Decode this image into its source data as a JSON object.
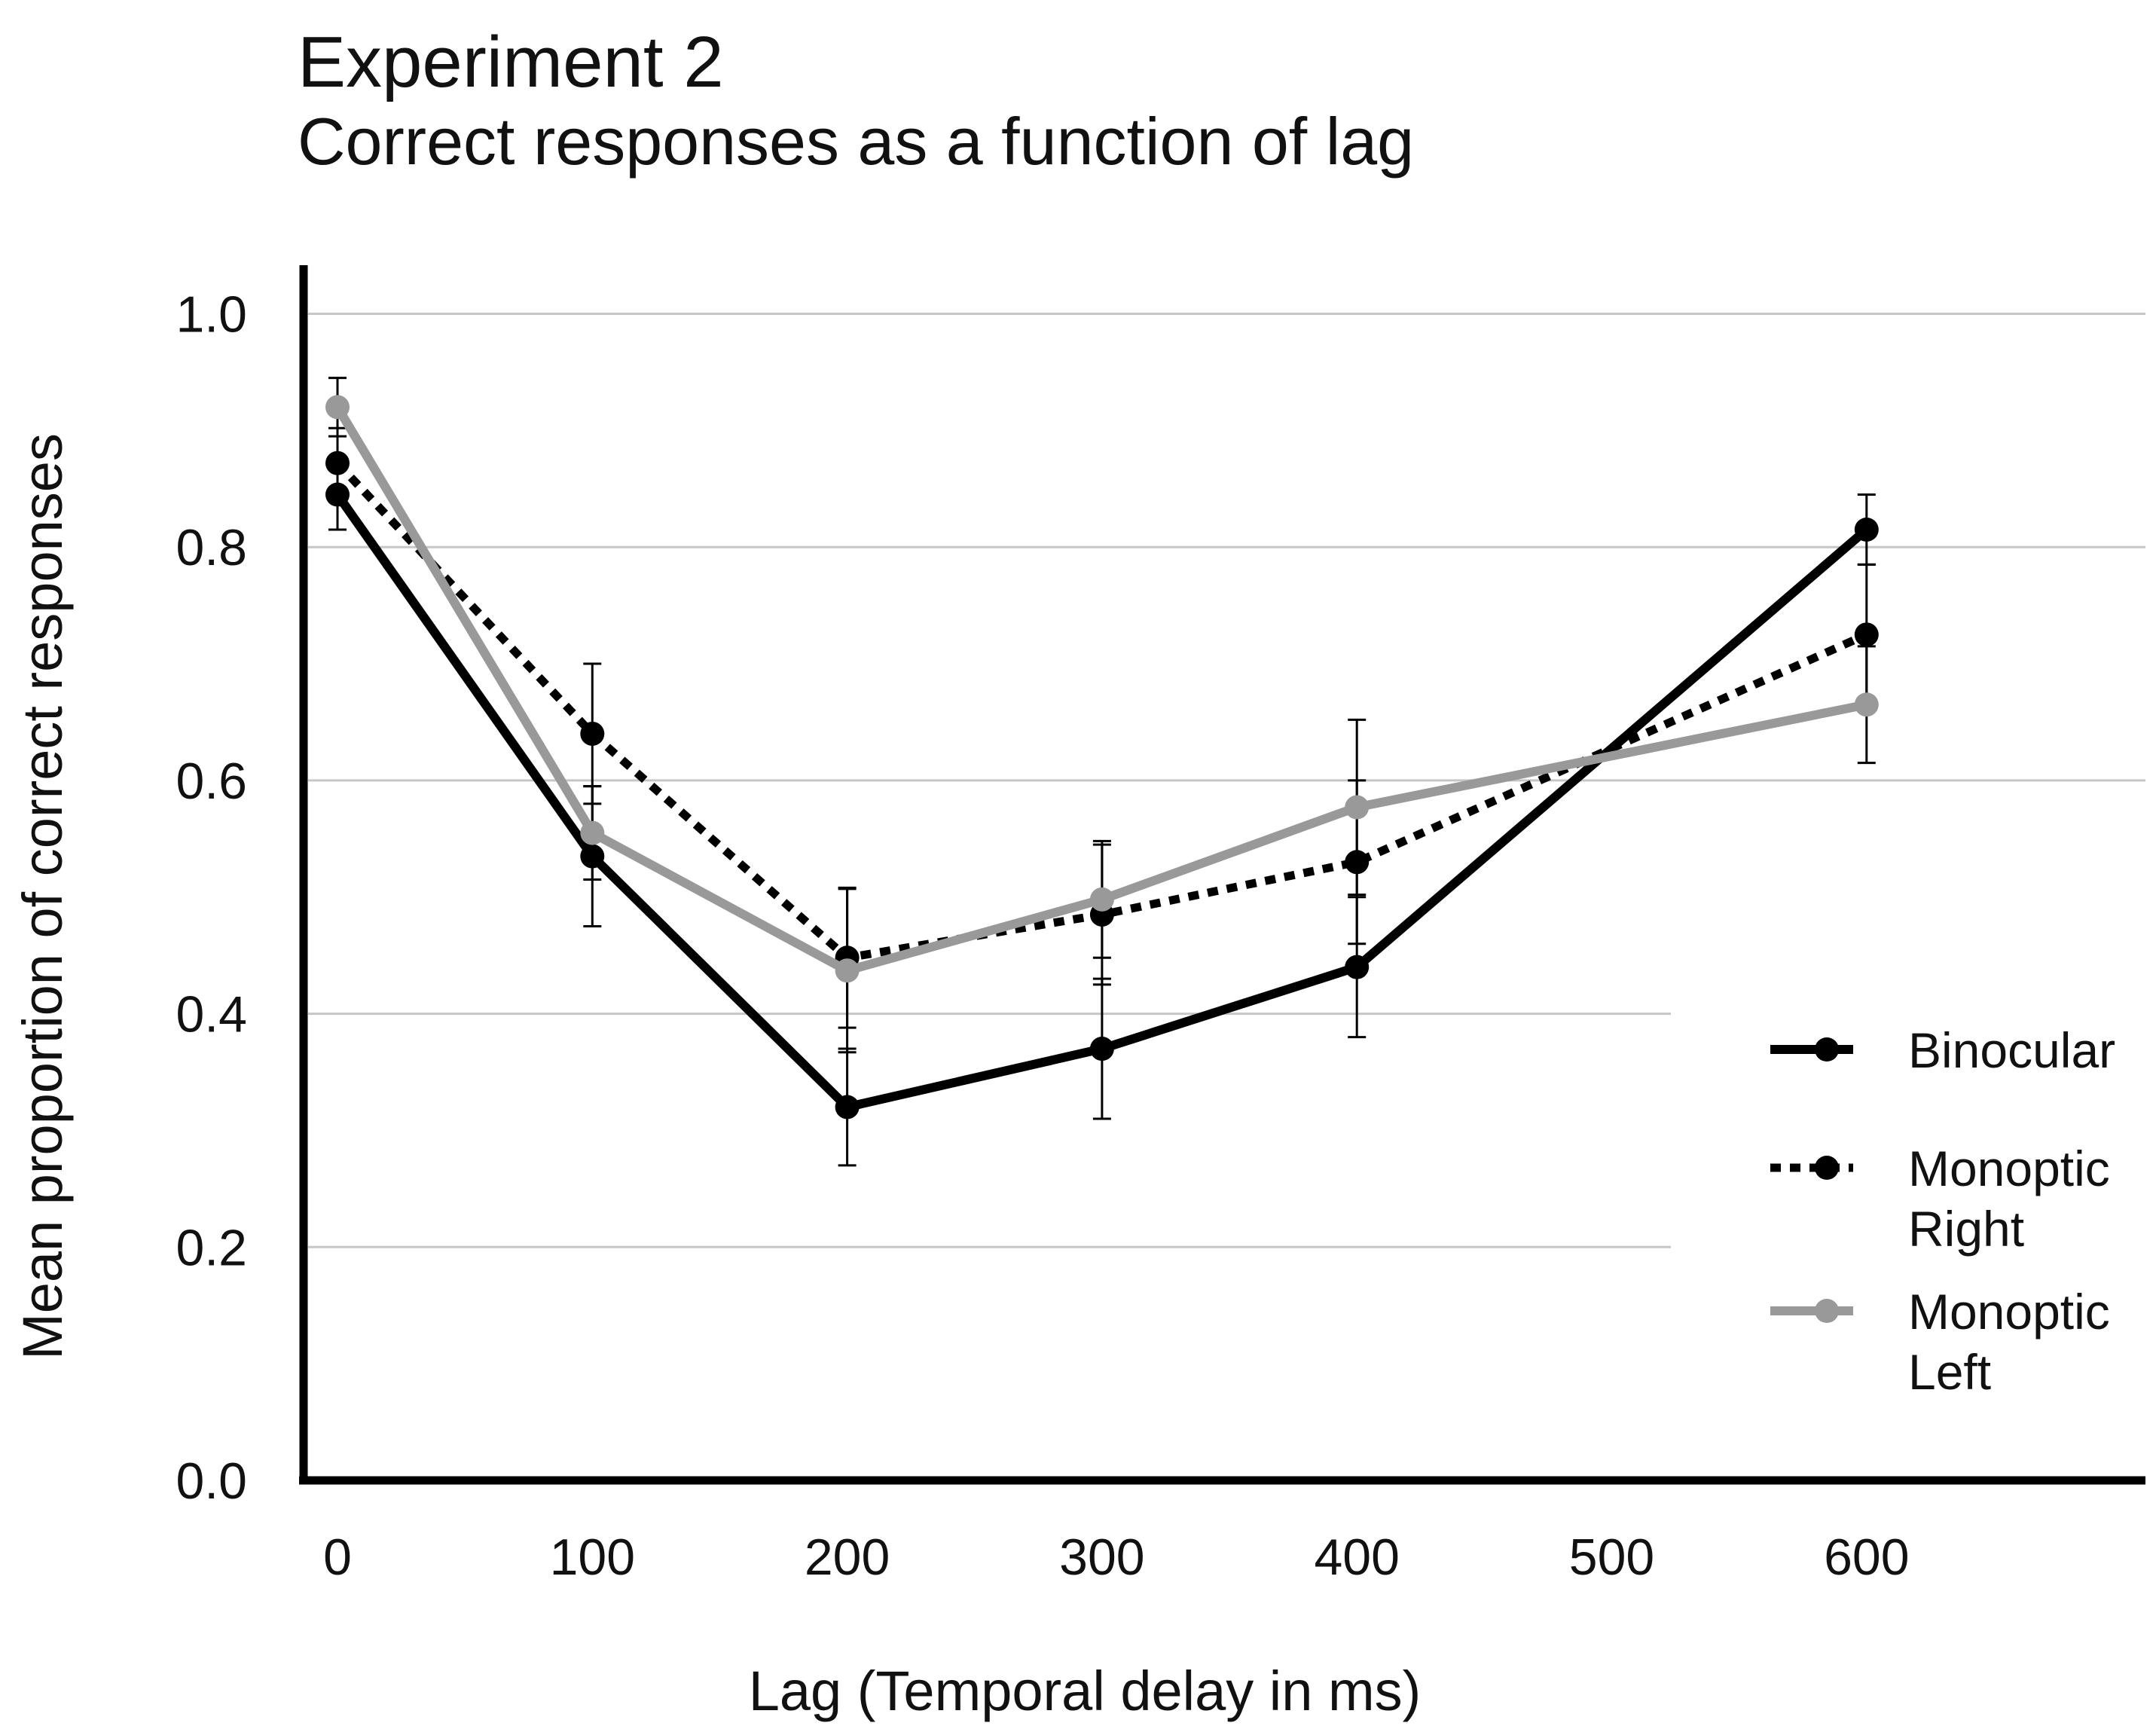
{
  "chart_data": {
    "type": "line",
    "title": "Experiment 2",
    "subtitle": "Correct responses as a function of lag",
    "xlabel": "Lag (Temporal delay in ms)",
    "ylabel": "Mean proportion of correct responses",
    "x": [
      0,
      100,
      200,
      300,
      400,
      600
    ],
    "xticks": [
      0,
      100,
      200,
      300,
      400,
      500,
      600
    ],
    "yticks": [
      0.0,
      0.2,
      0.4,
      0.6,
      0.8,
      1.0
    ],
    "ytick_labels": [
      "0.0",
      "0.2",
      "0.4",
      "0.6",
      "0.8",
      "1.0"
    ],
    "xlim": [
      0,
      700
    ],
    "ylim": [
      0,
      1.05
    ],
    "grid": "horizontal",
    "legend_position": "right",
    "series": [
      {
        "name": "Binocular",
        "values": [
          0.845,
          0.535,
          0.32,
          0.37,
          0.44,
          0.815
        ],
        "errors": [
          0.03,
          0.06,
          0.05,
          0.06,
          0.06,
          0.03
        ],
        "color": "#000000",
        "style": "solid"
      },
      {
        "name": "Monoptic Right",
        "values": [
          0.872,
          0.64,
          0.448,
          0.485,
          0.53,
          0.725
        ],
        "errors": [
          0.03,
          0.06,
          0.06,
          0.06,
          0.07,
          0.06
        ],
        "color": "#000000",
        "style": "dotted"
      },
      {
        "name": "Monoptic Left",
        "values": [
          0.92,
          0.555,
          0.437,
          0.498,
          0.577,
          0.665
        ],
        "errors": [
          0.025,
          0.04,
          0.07,
          0.05,
          0.075,
          0.05
        ],
        "color": "#999999",
        "style": "solid"
      }
    ],
    "legend": [
      {
        "line1": "Binocular",
        "line2": ""
      },
      {
        "line1": "Monoptic",
        "line2": "Right"
      },
      {
        "line1": "Monoptic",
        "line2": "Left"
      }
    ]
  }
}
